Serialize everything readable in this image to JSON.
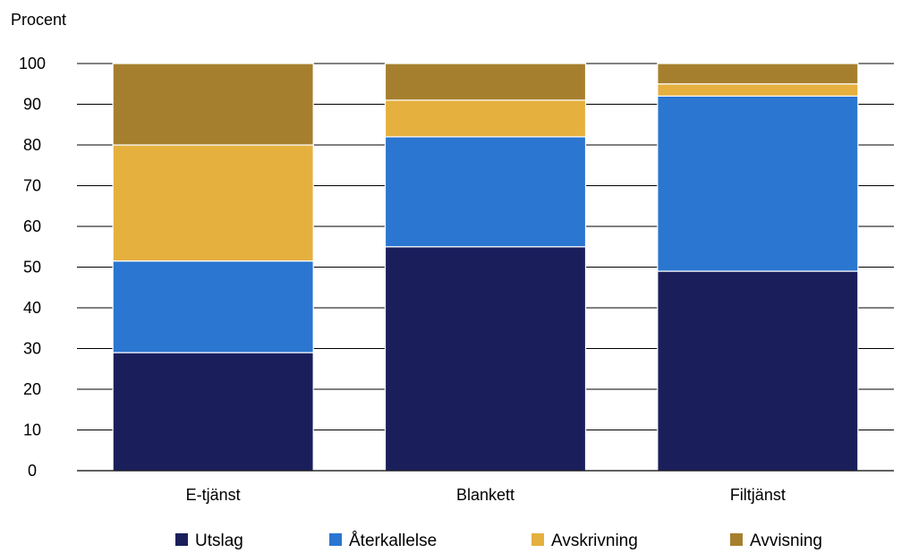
{
  "chart_data": {
    "type": "bar",
    "stacked": true,
    "ylabel": "Procent",
    "ylim": [
      0,
      100
    ],
    "yticks": [
      0,
      10,
      20,
      30,
      40,
      50,
      60,
      70,
      80,
      90,
      100
    ],
    "grid": true,
    "legend_position": "bottom",
    "categories": [
      "E-tjänst",
      "Blankett",
      "Filtjänst"
    ],
    "series": [
      {
        "name": "Utslag",
        "color": "#1a1f5c",
        "values": [
          29,
          55,
          49
        ]
      },
      {
        "name": "Återkallelse",
        "color": "#2a76d0",
        "values": [
          22.5,
          27,
          43
        ]
      },
      {
        "name": "Avskrivning",
        "color": "#e5b03e",
        "values": [
          28.5,
          9,
          3
        ]
      },
      {
        "name": "Avvisning",
        "color": "#a67f2e",
        "values": [
          20,
          9,
          5
        ]
      }
    ]
  }
}
